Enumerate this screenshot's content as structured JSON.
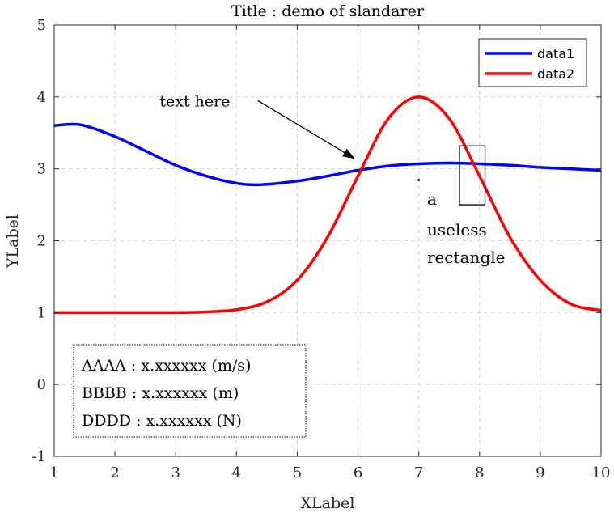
{
  "chart_data": {
    "type": "line",
    "title": "Title : demo of slandarer",
    "xlabel": "XLabel",
    "ylabel": "YLabel",
    "xlim": [
      1,
      10
    ],
    "ylim": [
      -1,
      5
    ],
    "xticks": [
      "1",
      "2",
      "3",
      "4",
      "5",
      "6",
      "7",
      "8",
      "9",
      "10"
    ],
    "yticks": [
      "-1",
      "0",
      "1",
      "2",
      "3",
      "4",
      "5"
    ],
    "grid": true,
    "legend_position": "top-right",
    "series": [
      {
        "name": "data1",
        "color": "#0000ff",
        "x": [
          1.0,
          1.25,
          1.5,
          2.0,
          2.5,
          3.0,
          3.5,
          4.0,
          4.4,
          5.0,
          5.5,
          6.0,
          6.5,
          7.0,
          7.5,
          8.0,
          8.5,
          9.0,
          9.5,
          10.0
        ],
        "y": [
          3.6,
          3.62,
          3.6,
          3.45,
          3.25,
          3.05,
          2.9,
          2.8,
          2.78,
          2.83,
          2.9,
          2.98,
          3.04,
          3.07,
          3.08,
          3.07,
          3.05,
          3.02,
          3.0,
          2.98
        ]
      },
      {
        "name": "data2",
        "color": "#ff0000",
        "x": [
          1.0,
          2.0,
          3.0,
          3.5,
          4.0,
          4.5,
          5.0,
          5.5,
          6.0,
          6.5,
          7.0,
          7.5,
          8.0,
          8.5,
          9.0,
          9.5,
          10.0
        ],
        "y": [
          1.0,
          1.0,
          1.0,
          1.01,
          1.04,
          1.15,
          1.45,
          2.05,
          2.9,
          3.7,
          4.0,
          3.7,
          2.9,
          2.05,
          1.45,
          1.12,
          1.03
        ]
      }
    ],
    "annotations": {
      "arrow": {
        "text": "text here",
        "text_at": [
          4.2,
          3.95
        ],
        "tail": [
          4.35,
          3.95
        ],
        "head": [
          5.95,
          3.14
        ]
      },
      "rectangle": {
        "x": [
          7.67,
          8.09
        ],
        "y": [
          2.5,
          3.32
        ]
      },
      "rectangle_label": [
        "a",
        "useless",
        "rectangle"
      ],
      "marker": [
        7.0,
        2.85
      ]
    },
    "info_box": [
      "AAAA : x.xxxxxx (m/s)",
      "BBBB : x.xxxxxx (m)",
      "DDDD : x.xxxxxx (N)"
    ]
  }
}
